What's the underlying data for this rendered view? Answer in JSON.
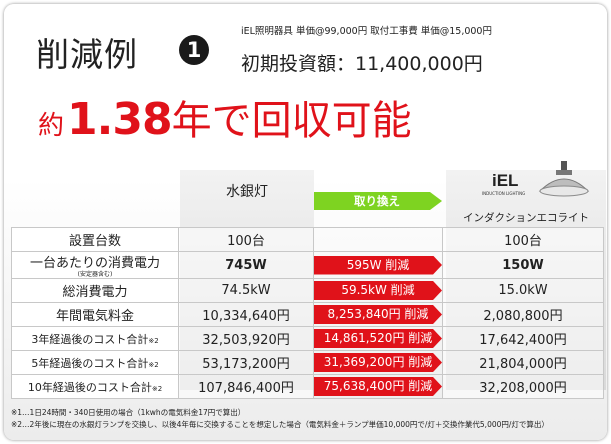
{
  "title": "削減例",
  "badge": "1",
  "price_line": "iEL照明器具 単価@99,000円 取付工事費 単価@15,000円",
  "investment": "初期投資額：11,400,000円",
  "headline": {
    "prefix": "約",
    "number": "1.38",
    "suffix": "年で回収可能"
  },
  "columns": {
    "mercury": "水銀灯",
    "swap": "取り換え",
    "iel_logo": "iEL",
    "iel_logo_sub": "INDUCTION LIGHTING",
    "iel": "インダクションエコライト"
  },
  "rows": [
    {
      "label": "設置台数",
      "note": "",
      "mercury": "100台",
      "saving": "",
      "iel": "100台"
    },
    {
      "label": "一台あたりの消費電力",
      "note": "(安定器含む)",
      "mercury": "745W",
      "saving": "595W 削減",
      "iel": "150W"
    },
    {
      "label": "総消費電力",
      "note": "",
      "mercury": "74.5kW",
      "saving": "59.5kW 削減",
      "iel": "15.0kW"
    },
    {
      "label": "年間電気料金",
      "note": "",
      "mercury": "10,334,640円",
      "saving": "8,253,840円 削減",
      "iel": "2,080,800円"
    },
    {
      "label": "3年経過後のコスト合計",
      "note": "※2",
      "mercury": "32,503,920円",
      "saving": "14,861,520円 削減",
      "iel": "17,642,400円"
    },
    {
      "label": "5年経過後のコスト合計",
      "note": "※2",
      "mercury": "53,173,200円",
      "saving": "31,369,200円 削減",
      "iel": "21,804,000円"
    },
    {
      "label": "10年経過後のコスト合計",
      "note": "※2",
      "mercury": "107,846,400円",
      "saving": "75,638,400円 削減",
      "iel": "32,208,000円"
    }
  ],
  "notes": [
    "※1…1日24時間・340日使用の場合（1kwhの電気料金17円で算出）",
    "※2…2年後に現在の水銀灯ランプを交換し、以後4年毎に交換することを想定した場合（電気料金＋ランプ単価10,000円で/灯＋交換作業代5,000円/灯で算出）"
  ],
  "colors": {
    "accent": "#e0121a",
    "swap_green": "#7ed321"
  }
}
